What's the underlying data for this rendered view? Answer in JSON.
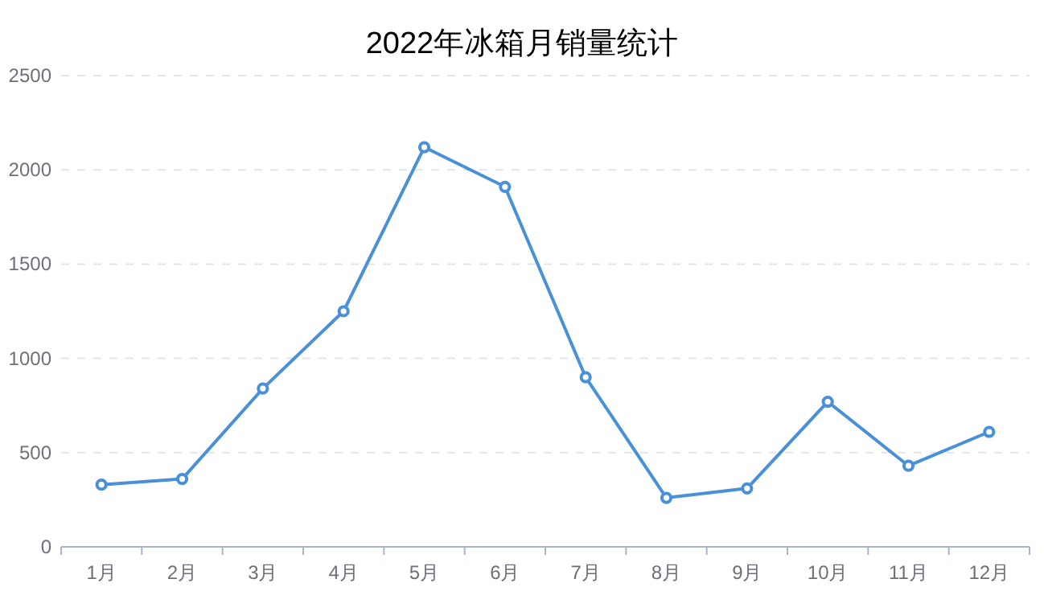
{
  "chart_data": {
    "type": "line",
    "title": "2022年冰箱月销量统计",
    "categories": [
      "1月",
      "2月",
      "3月",
      "4月",
      "5月",
      "6月",
      "7月",
      "8月",
      "9月",
      "10月",
      "11月",
      "12月"
    ],
    "series": [
      {
        "color": "#4a90d9",
        "values": [
          330,
          360,
          840,
          1250,
          2120,
          1910,
          900,
          260,
          310,
          770,
          430,
          610
        ]
      }
    ],
    "ylim": [
      0,
      2500
    ],
    "yticks": [
      0,
      500,
      1000,
      1500,
      2000,
      2500
    ],
    "grid": "y",
    "marker": "circle"
  }
}
